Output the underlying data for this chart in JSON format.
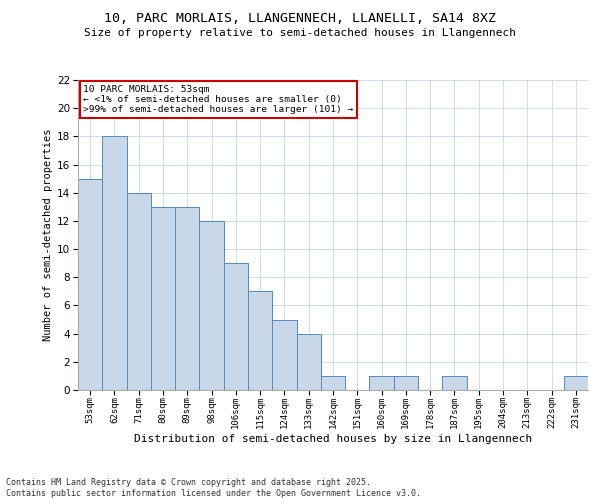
{
  "title1": "10, PARC MORLAIS, LLANGENNECH, LLANELLI, SA14 8XZ",
  "title2": "Size of property relative to semi-detached houses in Llangennech",
  "xlabel": "Distribution of semi-detached houses by size in Llangennech",
  "ylabel": "Number of semi-detached properties",
  "categories": [
    "53sqm",
    "62sqm",
    "71sqm",
    "80sqm",
    "89sqm",
    "98sqm",
    "106sqm",
    "115sqm",
    "124sqm",
    "133sqm",
    "142sqm",
    "151sqm",
    "160sqm",
    "169sqm",
    "178sqm",
    "187sqm",
    "195sqm",
    "204sqm",
    "213sqm",
    "222sqm",
    "231sqm"
  ],
  "values": [
    15,
    18,
    14,
    13,
    13,
    12,
    9,
    7,
    5,
    4,
    1,
    0,
    1,
    1,
    0,
    1,
    0,
    0,
    0,
    0,
    1
  ],
  "bar_color": "#c8d8e8",
  "bar_edge_color": "#5588bb",
  "annotation_title": "10 PARC MORLAIS: 53sqm",
  "annotation_line1": "← <1% of semi-detached houses are smaller (0)",
  "annotation_line2": ">99% of semi-detached houses are larger (101) →",
  "annotation_box_color": "#ffffff",
  "annotation_box_edge": "#cc0000",
  "ylim": [
    0,
    22
  ],
  "yticks": [
    0,
    2,
    4,
    6,
    8,
    10,
    12,
    14,
    16,
    18,
    20,
    22
  ],
  "footer1": "Contains HM Land Registry data © Crown copyright and database right 2025.",
  "footer2": "Contains public sector information licensed under the Open Government Licence v3.0.",
  "bg_color": "#ffffff",
  "grid_color": "#ccddee"
}
